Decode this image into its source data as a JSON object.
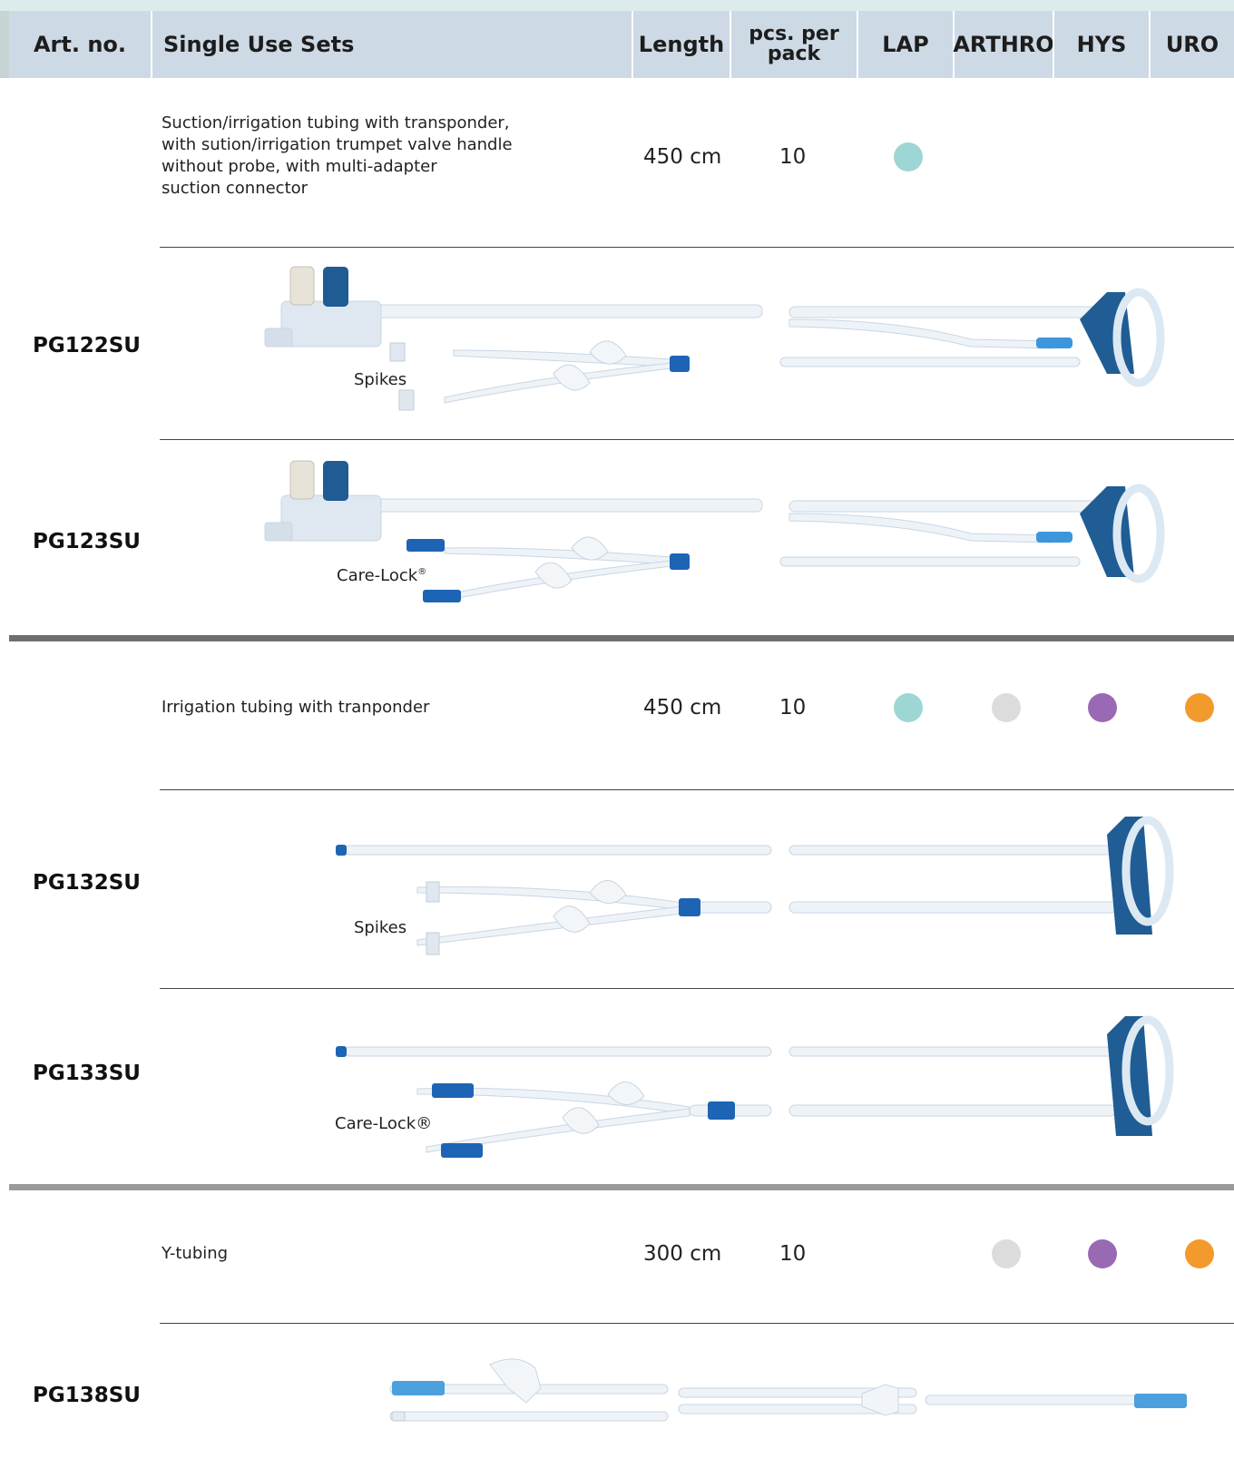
{
  "header": {
    "art_no": "Art. no.",
    "single_use_sets": "Single Use Sets",
    "length": "Length",
    "pcs_line1": "pcs. per",
    "pcs_line2": "pack",
    "lap": "LAP",
    "arthro": "ARTHRO",
    "hys": "HYS",
    "uro": "URO"
  },
  "colors": {
    "lap": "#9dd6d4",
    "arthro": "#dcdcdc",
    "hys": "#9a69b4",
    "uro": "#f39a2c",
    "header_bg": "#cdd9e4",
    "thick_rule_dark": "#6e6e6e",
    "thick_rule_light": "#9a9a9a",
    "connector_blue": "#1e64b4"
  },
  "groups": [
    {
      "description": [
        "Suction/irrigation tubing with transponder,",
        "with sution/irrigation trumpet valve handle",
        "without probe, with multi-adapter",
        "suction connector"
      ],
      "length": "450 cm",
      "pcs": "10",
      "disciplines": [
        "lap"
      ],
      "products": [
        {
          "art_no": "PG122SU",
          "connector_label": "Spikes",
          "icon": "suction-irrigation-set-spikes-image"
        },
        {
          "art_no": "PG123SU",
          "connector_label": "Care-Lock",
          "connector_mark": "®",
          "icon": "suction-irrigation-set-carelock-image"
        }
      ]
    },
    {
      "description": [
        "Irrigation tubing with tranponder"
      ],
      "length": "450 cm",
      "pcs": "10",
      "disciplines": [
        "lap",
        "arthro",
        "hys",
        "uro"
      ],
      "products": [
        {
          "art_no": "PG132SU",
          "connector_label": "Spikes",
          "icon": "irrigation-set-spikes-image"
        },
        {
          "art_no": "PG133SU",
          "connector_label": "Care-Lock®",
          "icon": "irrigation-set-carelock-image"
        }
      ]
    },
    {
      "description": [
        "Y-tubing"
      ],
      "length": "300 cm",
      "pcs": "10",
      "disciplines": [
        "arthro",
        "hys",
        "uro"
      ],
      "products": [
        {
          "art_no": "PG138SU",
          "icon": "y-tubing-image"
        }
      ]
    }
  ]
}
